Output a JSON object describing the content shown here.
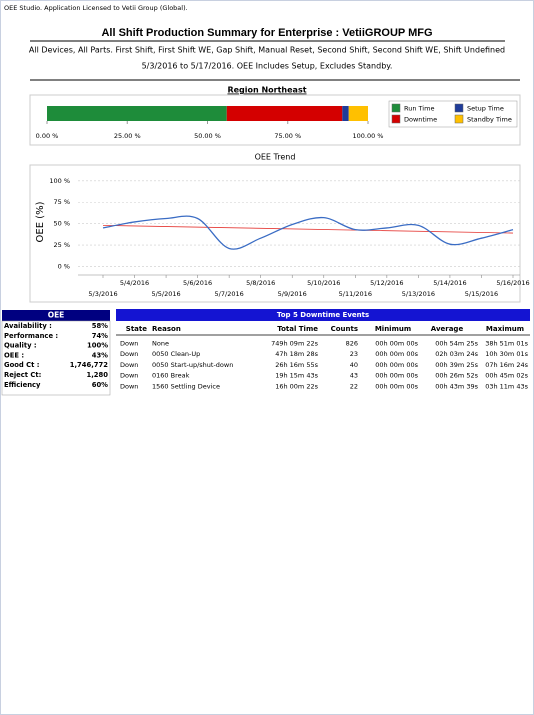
{
  "license": "OEE Studio. Application Licensed to Vetii Group (Global).",
  "header": {
    "title": "All Shift Production Summary for Enterprise : VetiiGROUP MFG",
    "subtitle_lines": [
      "All Devices, All Parts. First Shift, First Shift WE, Gap Shift, Manual Reset, Second Shift, Second Shift WE, Shift Undefined",
      "5/3/2016 to 5/17/2016. OEE Includes Setup, Excludes Standby."
    ]
  },
  "region": "Region Northeast",
  "chart_data": [
    {
      "type": "hbar_stacked",
      "series": [
        {
          "name": "Run Time",
          "color": "#1e8c3a",
          "values": [
            56
          ]
        },
        {
          "name": "Downtime",
          "color": "#d40000",
          "values": [
            36
          ]
        },
        {
          "name": "Setup Time",
          "color": "#1f3c99",
          "values": [
            2
          ]
        },
        {
          "name": "Standby Time",
          "color": "#ffc000",
          "values": [
            6
          ]
        }
      ],
      "xlim": [
        0,
        100
      ],
      "xticks": [
        {
          "value": 0,
          "label": "0.00 %"
        },
        {
          "value": 25,
          "label": "25.00 %"
        },
        {
          "value": 50,
          "label": "50.00 %"
        },
        {
          "value": 75,
          "label": "75.00 %"
        },
        {
          "value": 100,
          "label": "100.00 %"
        }
      ]
    },
    {
      "type": "line",
      "title": "OEE Trend",
      "y_label": "OEE (%)",
      "categories": [
        "5/3/2016",
        "5/4/2016",
        "5/5/2016",
        "5/6/2016",
        "5/7/2016",
        "5/8/2016",
        "5/9/2016",
        "5/10/2016",
        "5/11/2016",
        "5/12/2016",
        "5/13/2016",
        "5/14/2016",
        "5/15/2016",
        "5/16/2016"
      ],
      "series": [
        {
          "color": "#3a6cc4",
          "values": [
            45,
            52,
            56,
            56,
            21,
            33,
            49,
            57,
            43,
            45,
            48,
            26,
            33,
            43
          ]
        }
      ],
      "trend_line": {
        "color": "#e53935",
        "x": [
          "5/3/2016",
          "5/16/2016"
        ],
        "values": [
          48,
          39
        ]
      },
      "ylim": [
        -10,
        115
      ],
      "yticks": [
        {
          "value": 0,
          "label": "0 %"
        },
        {
          "value": 25,
          "label": "25 %"
        },
        {
          "value": 50,
          "label": "50 %"
        },
        {
          "value": 75,
          "label": "75 %"
        },
        {
          "value": 100,
          "label": "100 %"
        }
      ],
      "grid": true
    }
  ],
  "oee_table": {
    "title": "OEE",
    "rows": [
      [
        "Availability :",
        "58%"
      ],
      [
        "Performance :",
        "74%"
      ],
      [
        "Quality :",
        "100%"
      ],
      [
        "OEE :",
        "43%"
      ],
      [
        "Good Ct :",
        "1,746,772"
      ],
      [
        "Reject Ct:",
        "1,280"
      ],
      [
        "Efficiency",
        "60%"
      ]
    ]
  },
  "downtime_table": {
    "title": "Top 5 Downtime Events",
    "columns": [
      "State",
      "Reason",
      "Total Time",
      "Counts",
      "Minimum",
      "Average",
      "Maximum"
    ],
    "rows": [
      [
        "Down",
        "None",
        "749h 09m 22s",
        "826",
        "00h 00m 00s",
        "00h 54m 25s",
        "38h 51m 01s"
      ],
      [
        "Down",
        "0050 Clean-Up",
        "47h 18m 28s",
        "23",
        "00h 00m 00s",
        "02h 03m 24s",
        "10h 30m 01s"
      ],
      [
        "Down",
        "0050 Start-up/shut-down",
        "26h 16m 55s",
        "40",
        "00h 00m 00s",
        "00h 39m 25s",
        "07h 16m 24s"
      ],
      [
        "Down",
        "0160 Break",
        "19h 15m 43s",
        "43",
        "00h 00m 00s",
        "00h 26m 52s",
        "00h 45m 02s"
      ],
      [
        "Down",
        "1560 Settling Device",
        "16h 00m 22s",
        "22",
        "00h 00m 00s",
        "00h 43m 39s",
        "03h 11m 43s"
      ]
    ]
  }
}
